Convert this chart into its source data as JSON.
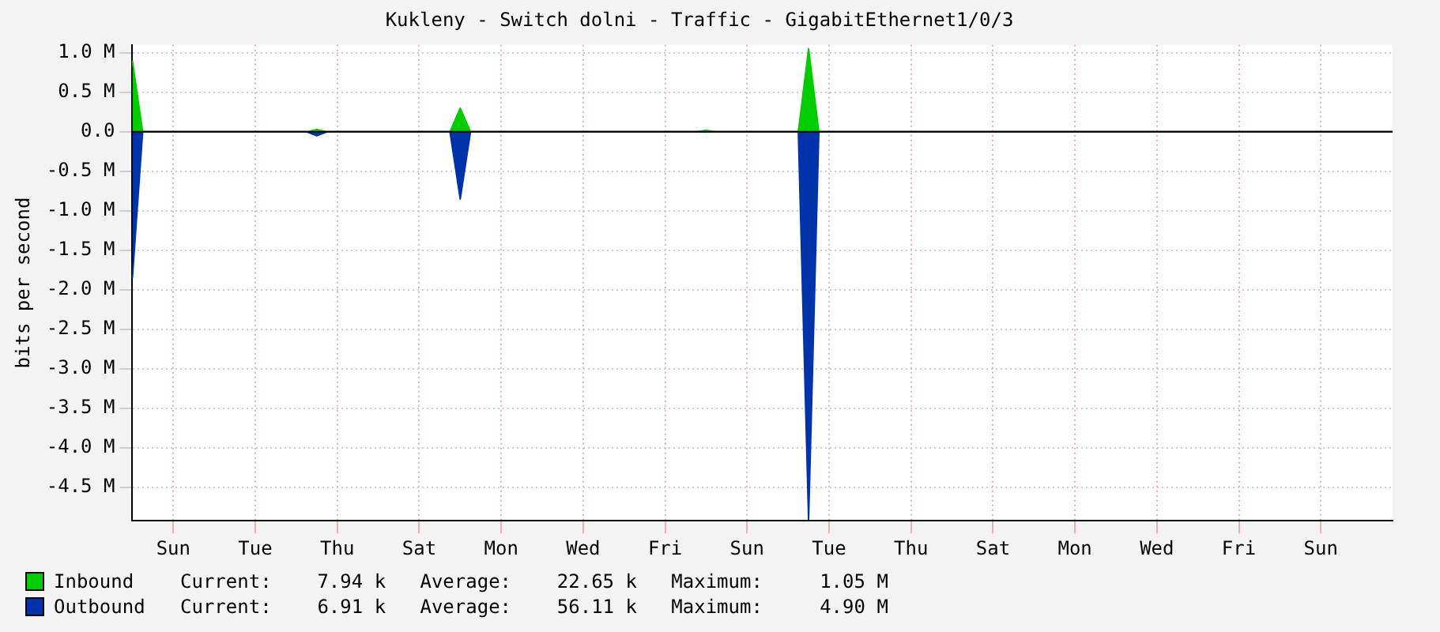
{
  "chart_data": {
    "type": "area",
    "title": "Kukleny - Switch dolni - Traffic - GigabitEthernet1/0/3",
    "ylabel": "bits per second",
    "categories": [
      null,
      null,
      null,
      null,
      "Sun",
      null,
      null,
      null,
      null,
      null,
      null,
      null,
      "Tue",
      null,
      null,
      null,
      null,
      null,
      null,
      null,
      "Thu",
      null,
      null,
      null,
      null,
      null,
      null,
      null,
      "Sat",
      null,
      null,
      null,
      null,
      null,
      null,
      null,
      "Mon",
      null,
      null,
      null,
      null,
      null,
      null,
      null,
      "Wed",
      null,
      null,
      null,
      null,
      null,
      null,
      null,
      "Fri",
      null,
      null,
      null,
      null,
      null,
      null,
      null,
      "Sun",
      null,
      null,
      null,
      null,
      null,
      null,
      null,
      "Tue",
      null,
      null,
      null,
      null,
      null,
      null,
      null,
      "Thu",
      null,
      null,
      null,
      null,
      null,
      null,
      null,
      "Sat",
      null,
      null,
      null,
      null,
      null,
      null,
      null,
      "Mon",
      null,
      null,
      null,
      null,
      null,
      null,
      null,
      "Wed",
      null,
      null,
      null,
      null,
      null,
      null,
      null,
      "Fri",
      null,
      null,
      null,
      null,
      null,
      null,
      null,
      "Sun",
      null,
      null,
      null,
      null,
      null,
      null,
      null
    ],
    "ylim": [
      -4.92,
      1.1
    ],
    "yticks": [
      {
        "value": 1,
        "label": "1.0 M"
      },
      {
        "value": 0.5,
        "label": "0.5 M"
      },
      {
        "value": 0,
        "label": "0.0"
      },
      {
        "value": -0.5,
        "label": "-0.5 M"
      },
      {
        "value": -1,
        "label": "-1.0 M"
      },
      {
        "value": -1.5,
        "label": "-1.5 M"
      },
      {
        "value": -2,
        "label": "-2.0 M"
      },
      {
        "value": -2.5,
        "label": "-2.5 M"
      },
      {
        "value": -3,
        "label": "-3.0 M"
      },
      {
        "value": -3.5,
        "label": "-3.5 M"
      },
      {
        "value": -4,
        "label": "-4.0 M"
      },
      {
        "value": -4.5,
        "label": "-4.5 M"
      }
    ],
    "series": [
      {
        "name": "Inbound",
        "color": "#00cc00",
        "values": [
          0.9,
          0,
          0,
          0,
          0,
          0,
          0,
          0,
          0,
          0,
          0,
          0,
          0,
          0,
          0,
          0,
          0,
          0,
          0.03,
          0,
          0,
          0,
          0,
          0,
          0,
          0,
          0,
          0,
          0,
          0,
          0,
          0,
          0.3,
          0,
          0,
          0,
          0,
          0,
          0,
          0,
          0,
          0,
          0,
          0,
          0,
          0,
          0,
          0,
          0,
          0,
          0,
          0,
          0,
          0,
          0,
          0,
          0.02,
          0,
          0,
          0,
          0,
          0,
          0,
          0,
          0,
          0,
          1.05,
          0,
          0,
          0,
          0,
          0,
          0,
          0,
          0,
          0,
          0,
          0,
          0,
          0,
          0,
          0,
          0,
          0,
          0,
          0,
          0,
          0,
          0,
          0,
          0,
          0,
          0,
          0,
          0,
          0,
          0,
          0,
          0,
          0,
          0,
          0,
          0,
          0,
          0,
          0,
          0,
          0,
          0,
          0,
          0,
          0,
          0,
          0,
          0,
          0,
          0,
          0,
          0,
          0,
          0,
          0,
          0,
          0
        ]
      },
      {
        "name": "Outbound",
        "color": "#0033aa",
        "values": [
          -1.85,
          0,
          0,
          0,
          0,
          0,
          0,
          0,
          0,
          0,
          0,
          0,
          0,
          0,
          0,
          0,
          0,
          0,
          -0.05,
          0,
          0,
          0,
          0,
          0,
          0,
          0,
          0,
          0,
          0,
          0,
          0,
          0,
          -0.85,
          0,
          0,
          0,
          0,
          0,
          0,
          0,
          0,
          0,
          0,
          0,
          0,
          0,
          0,
          0,
          0,
          0,
          0,
          0,
          0,
          0,
          0,
          0,
          0,
          0,
          0,
          0,
          0,
          0,
          0,
          0,
          0,
          0,
          -4.9,
          0,
          0,
          0,
          0,
          0,
          0,
          0,
          0,
          0,
          0,
          0,
          0,
          0,
          0,
          0,
          0,
          0,
          0,
          0,
          0,
          0,
          0,
          0,
          0,
          0,
          0,
          0,
          0,
          0,
          0,
          0,
          0,
          0,
          0,
          0,
          0,
          0,
          0,
          0,
          0,
          0,
          0,
          0,
          0,
          0,
          0,
          0,
          0,
          0,
          0,
          0,
          0,
          0,
          0,
          0,
          0,
          0
        ]
      }
    ],
    "ref_lines": [
      {
        "axis": "y",
        "value": 0,
        "color": "#000000"
      }
    ],
    "annotations": [
      "Current:    7.94 k   Average:    22.65 k   Maximum:     1.05 M",
      "Current:    6.91 k   Average:    56.11 k   Maximum:     4.90 M"
    ],
    "grid": true,
    "legend": "bottom",
    "marker": "none",
    "line_style": "solid"
  }
}
